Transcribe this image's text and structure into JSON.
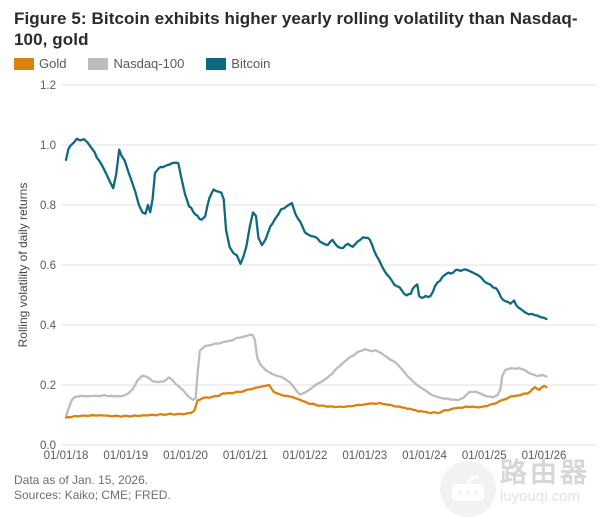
{
  "title": "Figure 5: Bitcoin exhibits higher yearly rolling volatility than Nasdaq-100, gold",
  "legend": {
    "items": [
      {
        "label": "Gold",
        "color": "#d9820f"
      },
      {
        "label": "Nasdaq-100",
        "color": "#bcbcbc"
      },
      {
        "label": "Bitcoin",
        "color": "#0f6a80"
      }
    ]
  },
  "chart_data": {
    "type": "line",
    "title": "Figure 5: Bitcoin exhibits higher yearly rolling volatility than Nasdaq-100, gold",
    "xlabel": "",
    "ylabel": "Rolling volatility of daily returns",
    "ylim": [
      0.0,
      1.2
    ],
    "grid": true,
    "legend_position": "top",
    "y_tick_labels": [
      "0.0",
      "0.2",
      "0.4",
      "0.6",
      "0.8",
      "1.0",
      "1.2"
    ],
    "x_tick_labels": [
      "01/01/18",
      "01/01/19",
      "01/01/20",
      "01/01/21",
      "01/01/22",
      "01/01/23",
      "01/01/24",
      "01/01/25",
      "01/01/26"
    ],
    "x_unit": "years_since_2018_01_01",
    "x_range": [
      0,
      8.04
    ],
    "series": [
      {
        "name": "Nasdaq-100",
        "color": "#bcbcbc",
        "points": [
          [
            0.0,
            0.096
          ],
          [
            0.05,
            0.125
          ],
          [
            0.1,
            0.15
          ],
          [
            0.15,
            0.16
          ],
          [
            0.25,
            0.163
          ],
          [
            0.45,
            0.163
          ],
          [
            0.65,
            0.165
          ],
          [
            0.8,
            0.162
          ],
          [
            0.95,
            0.164
          ],
          [
            1.05,
            0.172
          ],
          [
            1.12,
            0.188
          ],
          [
            1.2,
            0.215
          ],
          [
            1.27,
            0.23
          ],
          [
            1.35,
            0.228
          ],
          [
            1.45,
            0.214
          ],
          [
            1.55,
            0.209
          ],
          [
            1.63,
            0.212
          ],
          [
            1.72,
            0.225
          ],
          [
            1.8,
            0.212
          ],
          [
            1.88,
            0.196
          ],
          [
            1.97,
            0.18
          ],
          [
            2.07,
            0.158
          ],
          [
            2.13,
            0.15
          ],
          [
            2.17,
            0.158
          ],
          [
            2.2,
            0.235
          ],
          [
            2.24,
            0.315
          ],
          [
            2.33,
            0.33
          ],
          [
            2.45,
            0.335
          ],
          [
            2.6,
            0.341
          ],
          [
            2.75,
            0.348
          ],
          [
            2.9,
            0.358
          ],
          [
            3.05,
            0.365
          ],
          [
            3.12,
            0.368
          ],
          [
            3.16,
            0.352
          ],
          [
            3.2,
            0.29
          ],
          [
            3.26,
            0.266
          ],
          [
            3.35,
            0.248
          ],
          [
            3.45,
            0.238
          ],
          [
            3.55,
            0.23
          ],
          [
            3.65,
            0.222
          ],
          [
            3.75,
            0.207
          ],
          [
            3.85,
            0.183
          ],
          [
            3.92,
            0.167
          ],
          [
            4.0,
            0.176
          ],
          [
            4.1,
            0.188
          ],
          [
            4.2,
            0.203
          ],
          [
            4.3,
            0.213
          ],
          [
            4.45,
            0.237
          ],
          [
            4.6,
            0.268
          ],
          [
            4.75,
            0.292
          ],
          [
            4.9,
            0.311
          ],
          [
            5.0,
            0.32
          ],
          [
            5.06,
            0.316
          ],
          [
            5.12,
            0.313
          ],
          [
            5.18,
            0.316
          ],
          [
            5.28,
            0.306
          ],
          [
            5.4,
            0.288
          ],
          [
            5.52,
            0.274
          ],
          [
            5.62,
            0.253
          ],
          [
            5.72,
            0.23
          ],
          [
            5.82,
            0.21
          ],
          [
            5.92,
            0.193
          ],
          [
            6.02,
            0.18
          ],
          [
            6.12,
            0.167
          ],
          [
            6.25,
            0.158
          ],
          [
            6.4,
            0.153
          ],
          [
            6.55,
            0.15
          ],
          [
            6.65,
            0.158
          ],
          [
            6.75,
            0.176
          ],
          [
            6.85,
            0.177
          ],
          [
            6.95,
            0.17
          ],
          [
            7.05,
            0.163
          ],
          [
            7.15,
            0.16
          ],
          [
            7.22,
            0.167
          ],
          [
            7.27,
            0.185
          ],
          [
            7.3,
            0.228
          ],
          [
            7.35,
            0.25
          ],
          [
            7.45,
            0.255
          ],
          [
            7.58,
            0.256
          ],
          [
            7.68,
            0.248
          ],
          [
            7.78,
            0.237
          ],
          [
            7.88,
            0.231
          ],
          [
            7.96,
            0.233
          ],
          [
            8.04,
            0.228
          ]
        ]
      },
      {
        "name": "Gold",
        "color": "#d9820f",
        "points": [
          [
            0.0,
            0.091
          ],
          [
            0.15,
            0.096
          ],
          [
            0.35,
            0.098
          ],
          [
            0.55,
            0.099
          ],
          [
            0.75,
            0.097
          ],
          [
            0.95,
            0.096
          ],
          [
            1.15,
            0.097
          ],
          [
            1.35,
            0.099
          ],
          [
            1.55,
            0.101
          ],
          [
            1.75,
            0.103
          ],
          [
            1.95,
            0.103
          ],
          [
            2.08,
            0.106
          ],
          [
            2.15,
            0.115
          ],
          [
            2.2,
            0.148
          ],
          [
            2.28,
            0.156
          ],
          [
            2.4,
            0.159
          ],
          [
            2.52,
            0.162
          ],
          [
            2.6,
            0.17
          ],
          [
            2.75,
            0.173
          ],
          [
            2.9,
            0.177
          ],
          [
            3.0,
            0.182
          ],
          [
            3.15,
            0.189
          ],
          [
            3.3,
            0.196
          ],
          [
            3.4,
            0.2
          ],
          [
            3.47,
            0.178
          ],
          [
            3.58,
            0.168
          ],
          [
            3.7,
            0.163
          ],
          [
            3.83,
            0.158
          ],
          [
            3.95,
            0.147
          ],
          [
            4.1,
            0.137
          ],
          [
            4.3,
            0.13
          ],
          [
            4.5,
            0.127
          ],
          [
            4.7,
            0.128
          ],
          [
            4.9,
            0.133
          ],
          [
            5.1,
            0.138
          ],
          [
            5.25,
            0.139
          ],
          [
            5.42,
            0.133
          ],
          [
            5.58,
            0.127
          ],
          [
            5.75,
            0.121
          ],
          [
            5.92,
            0.112
          ],
          [
            6.1,
            0.108
          ],
          [
            6.22,
            0.107
          ],
          [
            6.35,
            0.115
          ],
          [
            6.5,
            0.122
          ],
          [
            6.65,
            0.126
          ],
          [
            6.8,
            0.128
          ],
          [
            6.92,
            0.125
          ],
          [
            7.05,
            0.131
          ],
          [
            7.2,
            0.14
          ],
          [
            7.33,
            0.152
          ],
          [
            7.45,
            0.161
          ],
          [
            7.6,
            0.167
          ],
          [
            7.72,
            0.172
          ],
          [
            7.85,
            0.192
          ],
          [
            7.92,
            0.185
          ],
          [
            8.0,
            0.196
          ],
          [
            8.04,
            0.193
          ]
        ]
      },
      {
        "name": "Bitcoin",
        "color": "#0f6a80",
        "points": [
          [
            0.0,
            0.95
          ],
          [
            0.04,
            0.985
          ],
          [
            0.08,
            1.0
          ],
          [
            0.13,
            1.01
          ],
          [
            0.18,
            1.025
          ],
          [
            0.24,
            1.018
          ],
          [
            0.3,
            1.022
          ],
          [
            0.36,
            1.012
          ],
          [
            0.42,
            0.99
          ],
          [
            0.48,
            0.972
          ],
          [
            0.55,
            0.95
          ],
          [
            0.62,
            0.928
          ],
          [
            0.68,
            0.905
          ],
          [
            0.74,
            0.88
          ],
          [
            0.79,
            0.857
          ],
          [
            0.84,
            0.905
          ],
          [
            0.89,
            0.985
          ],
          [
            0.93,
            0.962
          ],
          [
            0.98,
            0.945
          ],
          [
            1.04,
            0.91
          ],
          [
            1.1,
            0.88
          ],
          [
            1.16,
            0.843
          ],
          [
            1.22,
            0.8
          ],
          [
            1.28,
            0.778
          ],
          [
            1.33,
            0.77
          ],
          [
            1.37,
            0.795
          ],
          [
            1.41,
            0.777
          ],
          [
            1.45,
            0.825
          ],
          [
            1.49,
            0.905
          ],
          [
            1.55,
            0.92
          ],
          [
            1.62,
            0.928
          ],
          [
            1.7,
            0.932
          ],
          [
            1.78,
            0.94
          ],
          [
            1.84,
            0.945
          ],
          [
            1.88,
            0.937
          ],
          [
            1.93,
            0.888
          ],
          [
            1.99,
            0.838
          ],
          [
            2.06,
            0.798
          ],
          [
            2.13,
            0.775
          ],
          [
            2.2,
            0.762
          ],
          [
            2.27,
            0.75
          ],
          [
            2.33,
            0.762
          ],
          [
            2.4,
            0.828
          ],
          [
            2.47,
            0.85
          ],
          [
            2.55,
            0.845
          ],
          [
            2.6,
            0.842
          ],
          [
            2.64,
            0.815
          ],
          [
            2.68,
            0.715
          ],
          [
            2.74,
            0.66
          ],
          [
            2.8,
            0.638
          ],
          [
            2.86,
            0.628
          ],
          [
            2.92,
            0.603
          ],
          [
            2.97,
            0.628
          ],
          [
            3.02,
            0.66
          ],
          [
            3.08,
            0.73
          ],
          [
            3.13,
            0.777
          ],
          [
            3.18,
            0.763
          ],
          [
            3.22,
            0.69
          ],
          [
            3.28,
            0.668
          ],
          [
            3.34,
            0.688
          ],
          [
            3.42,
            0.725
          ],
          [
            3.5,
            0.757
          ],
          [
            3.6,
            0.783
          ],
          [
            3.7,
            0.795
          ],
          [
            3.78,
            0.808
          ],
          [
            3.84,
            0.775
          ],
          [
            3.92,
            0.74
          ],
          [
            4.0,
            0.712
          ],
          [
            4.1,
            0.697
          ],
          [
            4.2,
            0.688
          ],
          [
            4.3,
            0.668
          ],
          [
            4.38,
            0.67
          ],
          [
            4.46,
            0.682
          ],
          [
            4.55,
            0.662
          ],
          [
            4.64,
            0.655
          ],
          [
            4.72,
            0.672
          ],
          [
            4.8,
            0.66
          ],
          [
            4.88,
            0.678
          ],
          [
            4.97,
            0.69
          ],
          [
            5.05,
            0.693
          ],
          [
            5.12,
            0.67
          ],
          [
            5.2,
            0.628
          ],
          [
            5.28,
            0.6
          ],
          [
            5.36,
            0.57
          ],
          [
            5.45,
            0.548
          ],
          [
            5.54,
            0.53
          ],
          [
            5.62,
            0.515
          ],
          [
            5.7,
            0.498
          ],
          [
            5.77,
            0.505
          ],
          [
            5.84,
            0.53
          ],
          [
            5.88,
            0.54
          ],
          [
            5.91,
            0.497
          ],
          [
            5.98,
            0.49
          ],
          [
            6.06,
            0.495
          ],
          [
            6.14,
            0.508
          ],
          [
            6.22,
            0.545
          ],
          [
            6.3,
            0.558
          ],
          [
            6.4,
            0.572
          ],
          [
            6.52,
            0.58
          ],
          [
            6.64,
            0.585
          ],
          [
            6.76,
            0.58
          ],
          [
            6.88,
            0.568
          ],
          [
            7.0,
            0.548
          ],
          [
            7.1,
            0.535
          ],
          [
            7.2,
            0.523
          ],
          [
            7.28,
            0.492
          ],
          [
            7.36,
            0.478
          ],
          [
            7.44,
            0.473
          ],
          [
            7.5,
            0.483
          ],
          [
            7.57,
            0.458
          ],
          [
            7.65,
            0.447
          ],
          [
            7.75,
            0.437
          ],
          [
            7.85,
            0.43
          ],
          [
            7.95,
            0.426
          ],
          [
            8.04,
            0.42
          ]
        ]
      }
    ]
  },
  "footer": {
    "line1": "Data as of Jan. 15, 2026.",
    "line2": "Sources: Kaiko; CME; FRED."
  },
  "watermark": {
    "brand": "路由器",
    "domain": "luyouqi.com"
  }
}
